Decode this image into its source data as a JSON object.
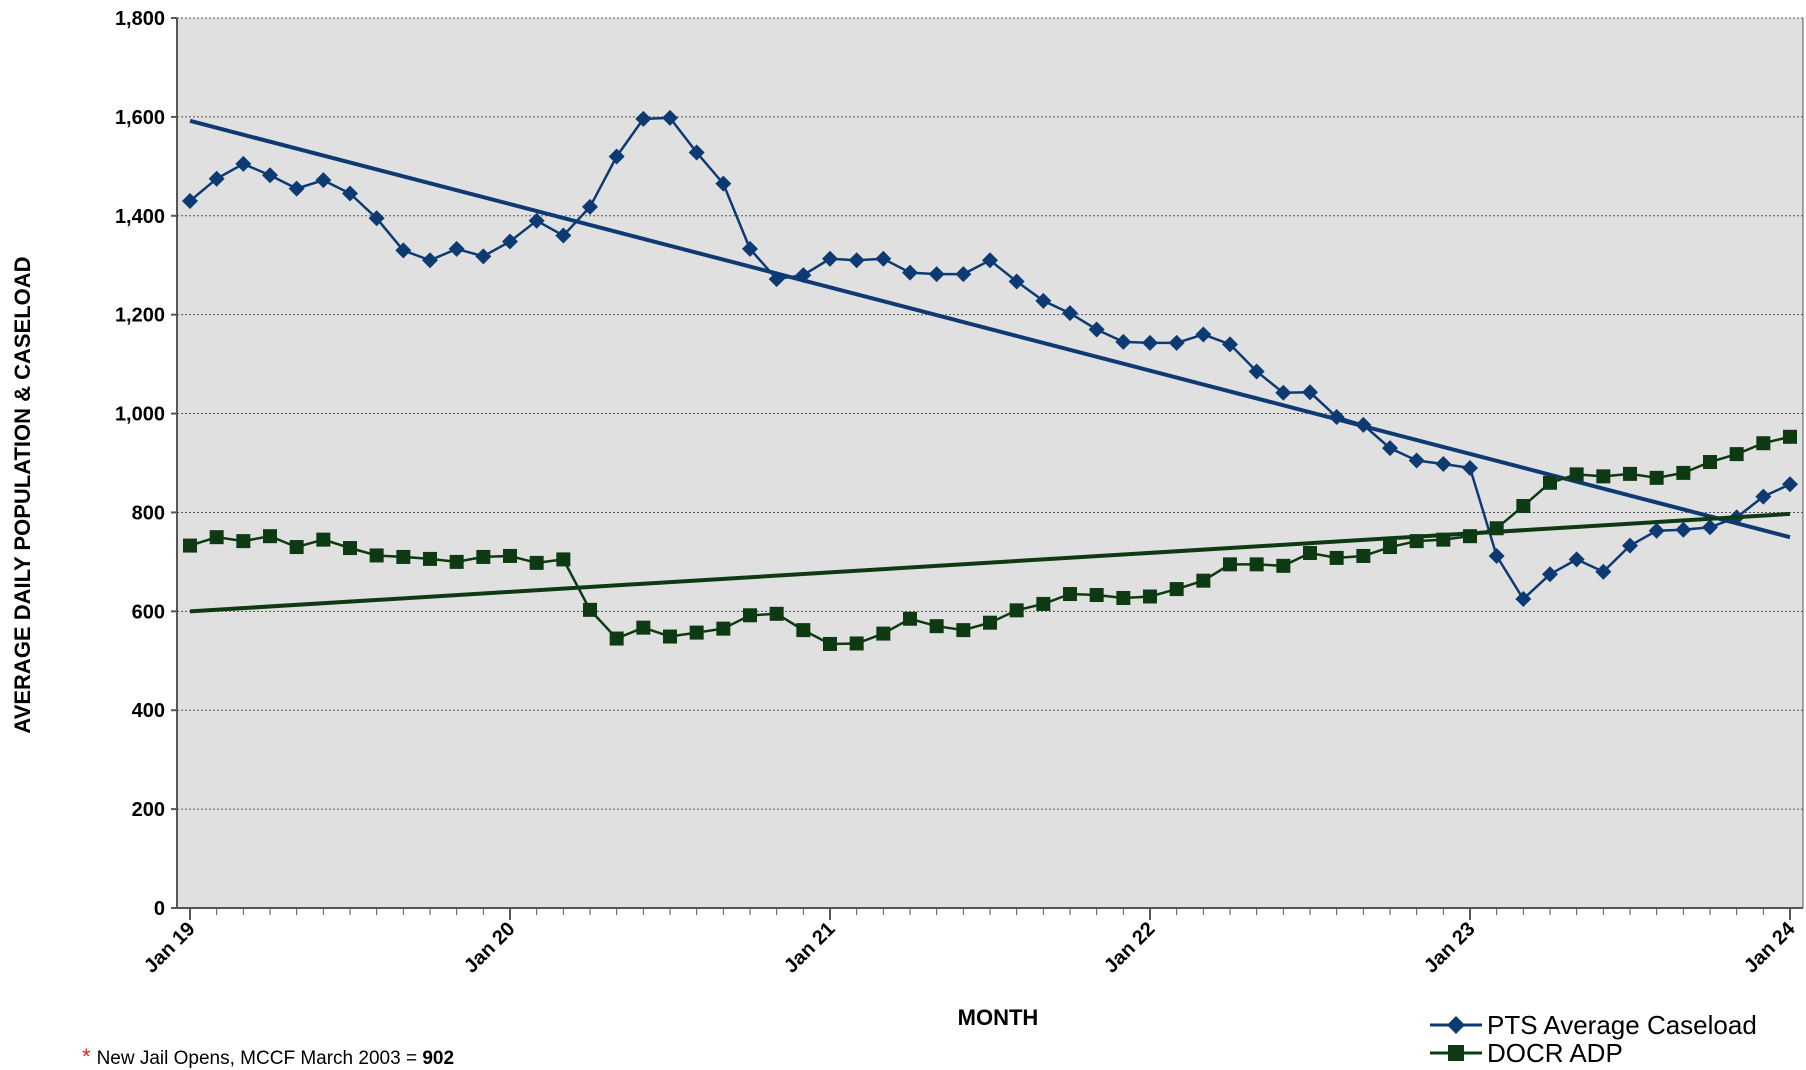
{
  "colors": {
    "plot_background": "#e0e0e0",
    "gridline": "#555555",
    "pts_series": "#0d3a73",
    "docr_series": "#0d3a12"
  },
  "footnote": {
    "star": "*",
    "text": "New Jail Opens, MCCF March 2003 = ",
    "value": "902"
  },
  "chart_data": {
    "type": "line",
    "title": "",
    "xlabel": "MONTH",
    "ylabel": "AVERAGE DAILY POPULATION & CASELOAD",
    "ylim": [
      0,
      1800
    ],
    "yticks": [
      0,
      200,
      400,
      600,
      800,
      1000,
      1200,
      1400,
      1600,
      1800
    ],
    "ytick_labels": [
      "0",
      "200",
      "400",
      "600",
      "800",
      "1,000",
      "1,200",
      "1,400",
      "1,600",
      "1,800"
    ],
    "x_months": 61,
    "xtick_labels": [
      "Jan 19",
      "Jan 20",
      "Jan 21",
      "Jan 22",
      "Jan 23",
      "Jan 24"
    ],
    "xtick_month_index": [
      0,
      12,
      24,
      36,
      48,
      60
    ],
    "grid": "horizontal dotted",
    "legend_placement": "bottom-right",
    "series": [
      {
        "name": "PTS Average Caseload",
        "marker": "diamond",
        "values": [
          1430,
          1475,
          1505,
          1482,
          1455,
          1472,
          1445,
          1395,
          1330,
          1310,
          1333,
          1318,
          1348,
          1390,
          1360,
          1418,
          1520,
          1596,
          1598,
          1528,
          1465,
          1333,
          1272,
          1280,
          1313,
          1310,
          1313,
          1285,
          1282,
          1282,
          1310,
          1267,
          1228,
          1203,
          1170,
          1145,
          1143,
          1143,
          1160,
          1140,
          1085,
          1042,
          1043,
          993,
          977,
          930,
          905,
          898,
          890,
          712,
          625,
          675,
          705,
          680,
          733,
          763,
          765,
          770,
          790,
          832,
          857
        ],
        "trendline": [
          1592,
          750
        ]
      },
      {
        "name": "DOCR ADP",
        "marker": "square",
        "values": [
          733,
          750,
          742,
          752,
          730,
          745,
          728,
          713,
          710,
          706,
          700,
          710,
          712,
          698,
          705,
          603,
          545,
          567,
          549,
          557,
          565,
          592,
          595,
          562,
          534,
          535,
          555,
          585,
          570,
          562,
          577,
          602,
          615,
          635,
          633,
          627,
          630,
          645,
          662,
          695,
          695,
          692,
          718,
          708,
          712,
          730,
          742,
          745,
          752,
          768,
          813,
          860,
          877,
          873,
          878,
          870,
          880,
          902,
          918,
          940,
          953
        ],
        "trendline": [
          600,
          797
        ]
      }
    ]
  }
}
